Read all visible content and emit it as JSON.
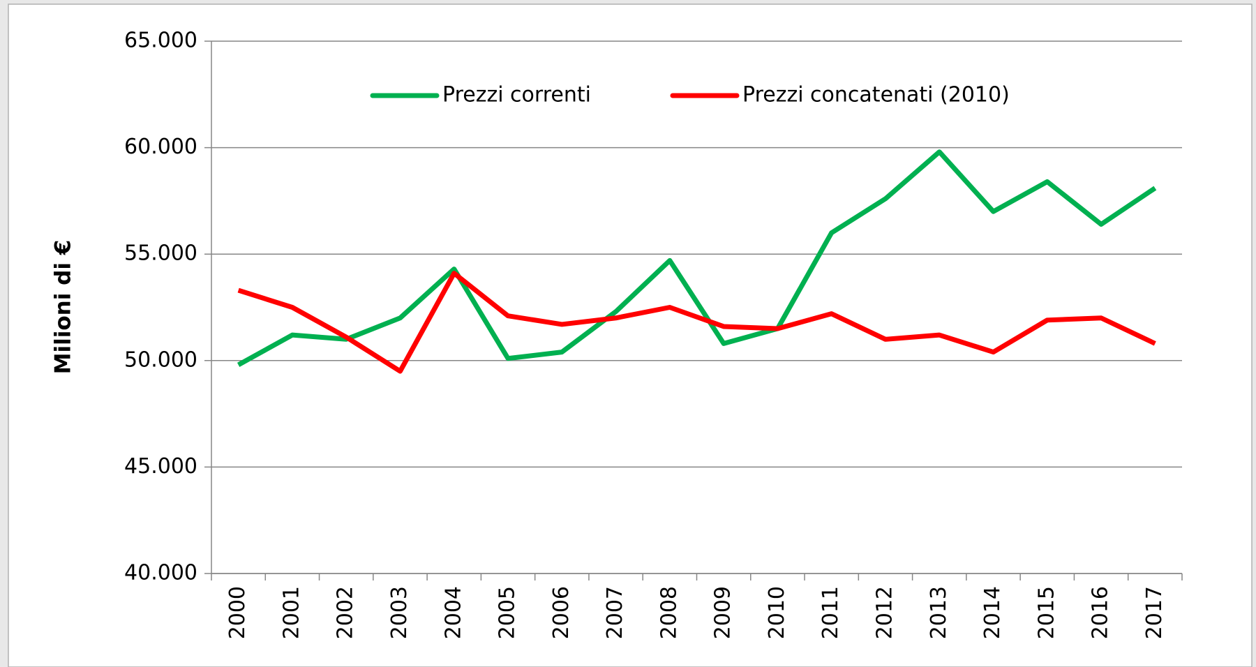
{
  "chart_data": {
    "type": "line",
    "y_label": "Milioni di €",
    "categories": [
      "2000",
      "2001",
      "2002",
      "2003",
      "2004",
      "2005",
      "2006",
      "2007",
      "2008",
      "2009",
      "2010",
      "2011",
      "2012",
      "2013",
      "2014",
      "2015",
      "2016",
      "2017"
    ],
    "series": [
      {
        "name": "Prezzi correnti",
        "color": "#00b050",
        "values": [
          49800,
          51200,
          51000,
          52000,
          54300,
          50100,
          50400,
          52300,
          54700,
          50800,
          51500,
          56000,
          57600,
          59800,
          57000,
          58400,
          56400,
          58100
        ]
      },
      {
        "name": "Prezzi concatenati (2010)",
        "color": "#ff0000",
        "values": [
          53300,
          52500,
          51100,
          49500,
          54100,
          52100,
          51700,
          52000,
          52500,
          51600,
          51500,
          52200,
          51000,
          51200,
          50400,
          51900,
          52000,
          50800
        ]
      }
    ],
    "ylim": [
      40000,
      65000
    ],
    "yticks": [
      {
        "value": 40000,
        "label": "40.000"
      },
      {
        "value": 45000,
        "label": "45.000"
      },
      {
        "value": 50000,
        "label": "50.000"
      },
      {
        "value": 55000,
        "label": "55.000"
      },
      {
        "value": 60000,
        "label": "60.000"
      },
      {
        "value": 65000,
        "label": "65.000"
      }
    ],
    "grid": true,
    "legend": "top"
  }
}
